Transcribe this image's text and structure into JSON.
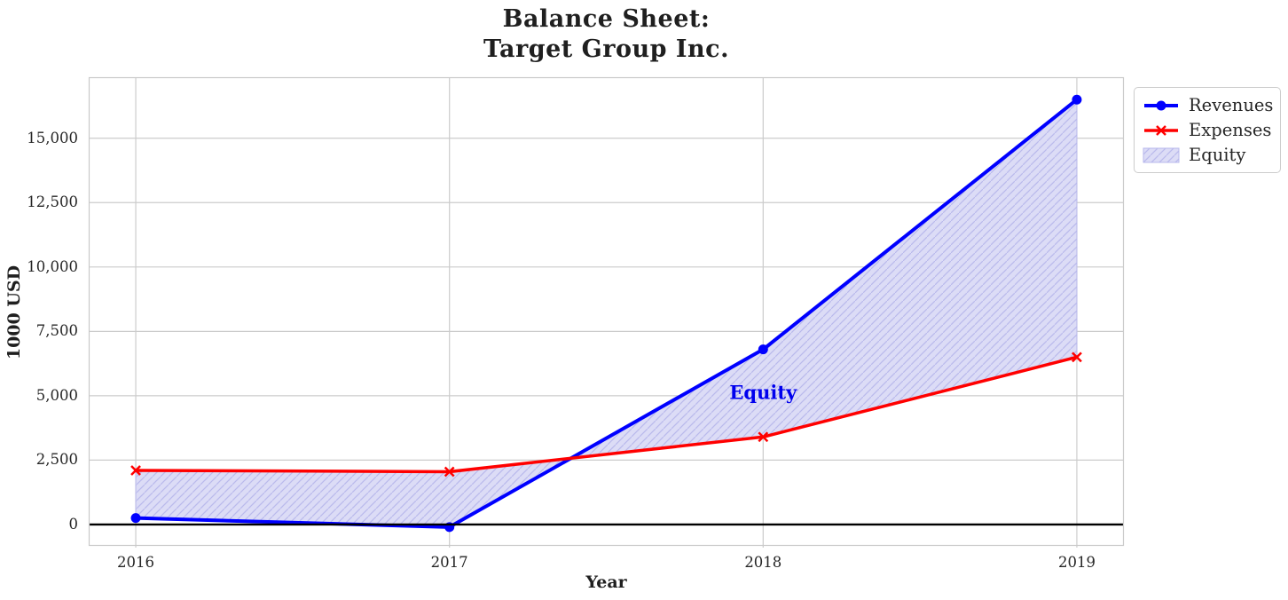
{
  "chart_data": {
    "type": "line",
    "title": "Balance Sheet:\nTarget Group Inc.",
    "title_lines": [
      "Balance Sheet:",
      "Target Group Inc."
    ],
    "xlabel": "Year",
    "ylabel": "1000 USD",
    "x": [
      2016,
      2017,
      2018,
      2019
    ],
    "xtick_labels": [
      "2016",
      "2017",
      "2018",
      "2019"
    ],
    "yticks": [
      0,
      2500,
      5000,
      7500,
      10000,
      12500,
      15000
    ],
    "ytick_labels": [
      "0",
      "2,500",
      "5,000",
      "7,500",
      "10,000",
      "12,500",
      "15,000"
    ],
    "xlim": [
      2015.85,
      2019.15
    ],
    "ylim": [
      -830,
      17370
    ],
    "grid": true,
    "series": [
      {
        "name": "Revenues",
        "color": "#0000ff",
        "marker": "circle",
        "line_width": 4,
        "values": [
          250,
          -100,
          6800,
          16500
        ]
      },
      {
        "name": "Expenses",
        "color": "#ff0000",
        "marker": "x",
        "line_width": 3.5,
        "values": [
          2100,
          2050,
          3400,
          6500
        ]
      }
    ],
    "area": {
      "name": "Equity",
      "label": "Equity",
      "between": [
        "Revenues",
        "Expenses"
      ],
      "fill_color": "#dcdcf6",
      "hatch_color": "#b9b9ec",
      "hatch": "diagonal /",
      "label_color": "#0000ee",
      "label_x": 2018,
      "label_y": 5150
    },
    "zero_line": {
      "y": 0,
      "color": "#000000"
    },
    "grid_color": "#cccccc",
    "spine_color": "#c9c9c9",
    "text_color": "#262626",
    "legend_position": "outside upper right",
    "legend": [
      {
        "label": "Revenues",
        "swatch": "blue-line-circle-marker"
      },
      {
        "label": "Expenses",
        "swatch": "red-line-x-marker"
      },
      {
        "label": "Equity",
        "swatch": "lavender-hatched-patch"
      }
    ]
  }
}
